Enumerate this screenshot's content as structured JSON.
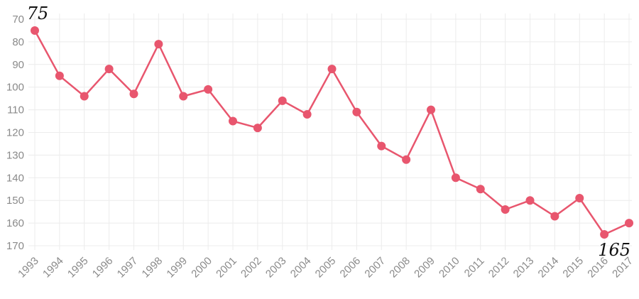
{
  "chart_data": {
    "type": "line",
    "title": "",
    "xlabel": "",
    "ylabel": "",
    "x": [
      "1993",
      "1994",
      "1995",
      "1996",
      "1997",
      "1998",
      "1999",
      "2000",
      "2001",
      "2002",
      "2003",
      "2004",
      "2005",
      "2006",
      "2007",
      "2008",
      "2009",
      "2010",
      "2011",
      "2012",
      "2013",
      "2014",
      "2015",
      "2016",
      "2017"
    ],
    "series": [
      {
        "values": [
          75,
          95,
          104,
          92,
          103,
          81,
          104,
          101,
          115,
          118,
          106,
          112,
          92,
          111,
          126,
          132,
          110,
          140,
          145,
          154,
          150,
          157,
          149,
          165,
          160
        ]
      }
    ],
    "yaxis": {
      "min": 70,
      "max": 170,
      "reversed": true,
      "ticks": [
        "70",
        "80",
        "90",
        "100",
        "110",
        "120",
        "130",
        "140",
        "150",
        "160",
        "170"
      ]
    },
    "grid": true,
    "legend": "none",
    "line_color": "#e8566e",
    "annotations": [
      {
        "x": "1993",
        "text": "75",
        "position": "above"
      },
      {
        "x": "2016",
        "text": "165",
        "position": "below"
      }
    ]
  }
}
